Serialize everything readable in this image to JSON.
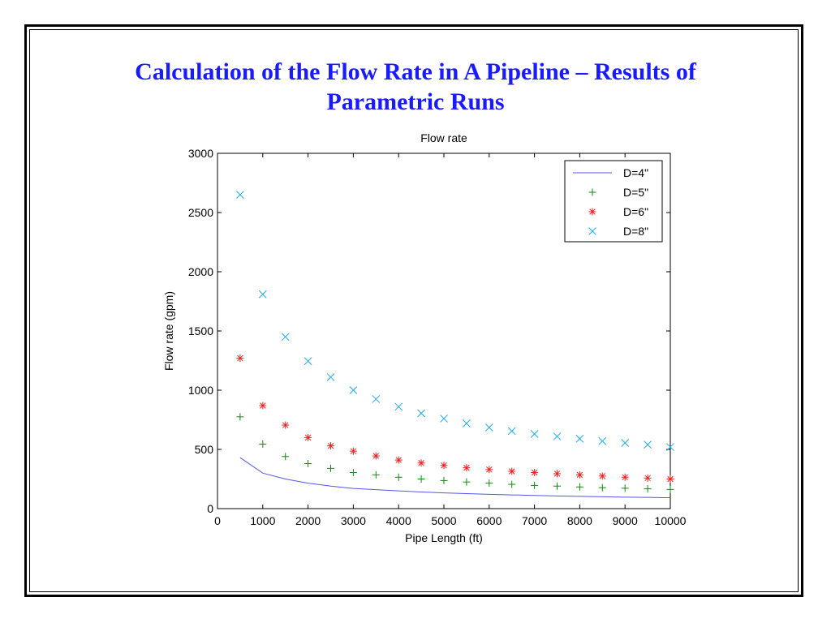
{
  "slide": {
    "title_line1": "Calculation of the Flow Rate in A Pipeline – Results of",
    "title_line2": "Parametric Runs"
  },
  "chart_data": {
    "type": "line",
    "title": "Flow rate",
    "xlabel": "Pipe Length (ft)",
    "ylabel": "Flow rate (gpm)",
    "xlim": [
      0,
      10000
    ],
    "ylim": [
      0,
      3000
    ],
    "xticks": [
      0,
      1000,
      2000,
      3000,
      4000,
      5000,
      6000,
      7000,
      8000,
      9000,
      10000
    ],
    "yticks": [
      0,
      500,
      1000,
      1500,
      2000,
      2500,
      3000
    ],
    "grid": false,
    "legend_position": "top-right",
    "x": [
      500,
      1000,
      1500,
      2000,
      2500,
      3000,
      3500,
      4000,
      4500,
      5000,
      5500,
      6000,
      6500,
      7000,
      7500,
      8000,
      8500,
      9000,
      9500,
      10000
    ],
    "series": [
      {
        "name": "D=4\"",
        "style": "line",
        "color": "#5555ee",
        "values": [
          430,
          300,
          250,
          215,
          190,
          170,
          160,
          150,
          140,
          133,
          127,
          121,
          116,
          111,
          107,
          104,
          100,
          97,
          95,
          92
        ]
      },
      {
        "name": "D=5\"",
        "style": "plus",
        "color": "#118811",
        "values": [
          775,
          545,
          440,
          380,
          340,
          305,
          285,
          265,
          250,
          237,
          225,
          215,
          205,
          196,
          190,
          183,
          177,
          172,
          167,
          162
        ]
      },
      {
        "name": "D=6\"",
        "style": "star",
        "color": "#ee2222",
        "values": [
          1270,
          870,
          705,
          600,
          530,
          485,
          445,
          410,
          385,
          365,
          345,
          330,
          315,
          305,
          295,
          285,
          275,
          265,
          258,
          250
        ]
      },
      {
        "name": "D=8\"",
        "style": "cross",
        "color": "#22aaee",
        "values": [
          2650,
          1810,
          1450,
          1245,
          1110,
          1000,
          925,
          860,
          805,
          760,
          720,
          685,
          655,
          630,
          610,
          590,
          570,
          555,
          540,
          520
        ]
      }
    ]
  }
}
